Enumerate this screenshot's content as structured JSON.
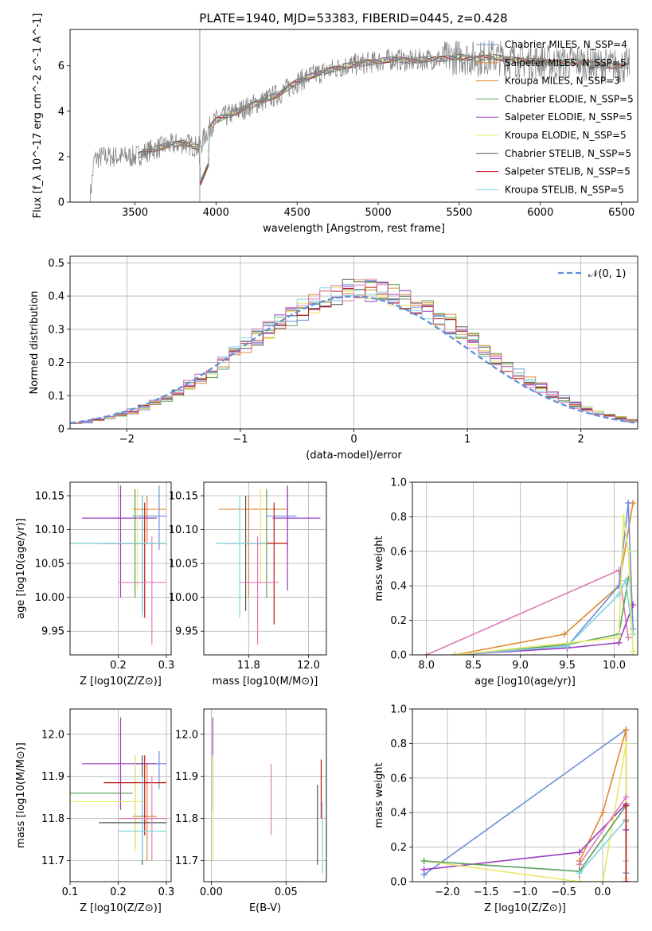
{
  "figure_title": "PLATE=1940, MJD=53383, FIBERID=0445, z=0.428",
  "colors": {
    "chabrier_miles": "#6a8fd8",
    "salpeter_miles": "#e0892f",
    "kroupa_miles": "#e0892f",
    "chabrier_elodie": "#5aa05a",
    "salpeter_elodie": "#9b3fc0",
    "kroupa_elodie": "#e8e86a",
    "chabrier_stelib": "#555555",
    "salpeter_stelib": "#c01818",
    "kroupa_stelib": "#7fd4e0",
    "data": "#808080",
    "gaussian": "#5a8fd8",
    "extra_pink": "#e07ab8"
  },
  "chart_data": [
    {
      "id": "spectrum",
      "type": "line",
      "title": "PLATE=1940, MJD=53383, FIBERID=0445, z=0.428",
      "xlabel": "wavelength [Angstrom, rest frame]",
      "ylabel": "Flux [f_λ 10^-17 erg cm^-2 s^-1 A^-1]",
      "xlim": [
        3100,
        6600
      ],
      "ylim": [
        0,
        7.6
      ],
      "xticks": [
        3500,
        4000,
        4500,
        5000,
        5500,
        6000,
        6500
      ],
      "yticks": [
        0,
        2,
        4,
        6
      ],
      "grid": false,
      "legend_position": "top-right",
      "legend": [
        {
          "label": "Chabrier MILES, N_SSP=4",
          "color": "#6a8fd8"
        },
        {
          "label": "Salpeter MILES, N_SSP=5",
          "color": "#e0892f"
        },
        {
          "label": "Kroupa MILES, N_SSP=3",
          "color": "#e0892f"
        },
        {
          "label": "Chabrier ELODIE, N_SSP=5",
          "color": "#5aa05a"
        },
        {
          "label": "Salpeter ELODIE, N_SSP=5",
          "color": "#9b3fc0"
        },
        {
          "label": "Kroupa ELODIE, N_SSP=5",
          "color": "#e8e86a"
        },
        {
          "label": "Chabrier STELIB, N_SSP=5",
          "color": "#555555"
        },
        {
          "label": "Salpeter STELIB, N_SSP=5",
          "color": "#c01818"
        },
        {
          "label": "Kroupa STELIB, N_SSP=5",
          "color": "#7fd4e0"
        }
      ],
      "continuum_x": [
        3220,
        3250,
        3300,
        3400,
        3500,
        3600,
        3700,
        3800,
        3900,
        3950,
        4000,
        4100,
        4200,
        4300,
        4400,
        4500,
        4600,
        4700,
        4800,
        4900,
        5000,
        5100,
        5200,
        5300,
        5400,
        5500,
        5600,
        5700,
        5800,
        5900,
        6000,
        6100,
        6200,
        6300,
        6400,
        6500
      ],
      "continuum_y": [
        0.0,
        1.9,
        2.0,
        2.0,
        2.0,
        2.3,
        2.5,
        2.6,
        2.4,
        3.2,
        3.6,
        3.9,
        4.2,
        4.5,
        4.8,
        5.3,
        5.6,
        5.8,
        6.0,
        6.1,
        6.2,
        6.3,
        6.2,
        6.3,
        6.3,
        6.4,
        6.3,
        6.4,
        6.3,
        6.2,
        6.2,
        6.1,
        6.2,
        6.1,
        6.0,
        6.0
      ],
      "model_start": 3520,
      "vline_x": 3900
    },
    {
      "id": "residuals",
      "type": "area",
      "xlabel": "(data-model)/error",
      "ylabel": "Normed distribution",
      "xlim": [
        -2.5,
        2.5
      ],
      "ylim": [
        0,
        0.52
      ],
      "xticks": [
        -2,
        -1,
        0,
        1,
        2
      ],
      "yticks": [
        0.0,
        0.1,
        0.2,
        0.3,
        0.4,
        0.5
      ],
      "grid": true,
      "legend_position": "top-right",
      "legend": [
        {
          "label": "𝒩(0, 1)",
          "color": "#5a8fd8"
        }
      ],
      "bin_width": 0.1,
      "series_colors": [
        "#6a8fd8",
        "#e0892f",
        "#5aa05a",
        "#9b3fc0",
        "#e8e86a",
        "#555555",
        "#c01818",
        "#7fd4e0",
        "#e07ab8"
      ]
    },
    {
      "id": "age_vs_Z",
      "type": "scatter",
      "xlabel": "Z [log10(Z/Z⊙)]",
      "ylabel": "age [log10(age/yr)]",
      "xlim": [
        0.1,
        0.31
      ],
      "ylim": [
        9.915,
        10.17
      ],
      "xticks": [
        0.2,
        0.3
      ],
      "yticks": [
        9.95,
        10.0,
        10.05,
        10.1,
        10.15
      ],
      "grid": true,
      "points": [
        {
          "x": 0.285,
          "y": 10.12,
          "xerr": [
            0.23,
            0.3
          ],
          "yerr": [
            10.07,
            10.165
          ],
          "color": "#6a8fd8"
        },
        {
          "x": 0.26,
          "y": 10.13,
          "xerr": [
            0.23,
            0.3
          ],
          "yerr": [
            10.08,
            10.15
          ],
          "color": "#e0892f"
        },
        {
          "x": 0.235,
          "y": 10.08,
          "xerr": [
            0.1,
            0.28
          ],
          "yerr": [
            10.0,
            10.16
          ],
          "color": "#5aa05a"
        },
        {
          "x": 0.205,
          "y": 10.117,
          "xerr": [
            0.125,
            0.28
          ],
          "yerr": [
            10.0,
            10.165
          ],
          "color": "#9b3fc0"
        },
        {
          "x": 0.24,
          "y": 10.08,
          "xerr": [
            0.1,
            0.3
          ],
          "yerr": [
            10.01,
            10.16
          ],
          "color": "#e8e86a"
        },
        {
          "x": 0.25,
          "y": 10.08,
          "xerr": [
            0.16,
            0.3
          ],
          "yerr": [
            9.98,
            10.15
          ],
          "color": "#555555"
        },
        {
          "x": 0.255,
          "y": 10.08,
          "xerr": [
            0.17,
            0.3
          ],
          "yerr": [
            9.97,
            10.14
          ],
          "color": "#c01818"
        },
        {
          "x": 0.27,
          "y": 10.022,
          "xerr": [
            0.2,
            0.3
          ],
          "yerr": [
            9.93,
            10.09
          ],
          "color": "#e07ab8"
        },
        {
          "x": 0.25,
          "y": 10.08,
          "xerr": [
            0.1,
            0.3
          ],
          "yerr": [
            9.97,
            10.15
          ],
          "color": "#7fd4e0"
        }
      ]
    },
    {
      "id": "age_vs_mass",
      "type": "scatter",
      "xlabel": "mass [log10(M/M⊙)]",
      "ylabel": "",
      "xlim": [
        11.65,
        12.06
      ],
      "ylim": [
        9.915,
        10.17
      ],
      "xticks": [
        11.8,
        12.0
      ],
      "yticks": [
        9.95,
        10.0,
        10.05,
        10.1,
        10.15
      ],
      "grid": true,
      "points": [
        {
          "x": 11.93,
          "y": 10.12,
          "xerr": [
            11.86,
            11.96
          ],
          "yerr": [
            10.07,
            10.165
          ],
          "color": "#6a8fd8"
        },
        {
          "x": 11.8,
          "y": 10.13,
          "xerr": [
            11.7,
            11.93
          ],
          "yerr": [
            10.0,
            10.15
          ],
          "color": "#e0892f"
        },
        {
          "x": 11.86,
          "y": 10.08,
          "xerr": [
            11.78,
            11.93
          ],
          "yerr": [
            10.0,
            10.16
          ],
          "color": "#5aa05a"
        },
        {
          "x": 11.93,
          "y": 10.117,
          "xerr": [
            11.88,
            12.04
          ],
          "yerr": [
            10.01,
            10.165
          ],
          "color": "#9b3fc0"
        },
        {
          "x": 11.84,
          "y": 10.08,
          "xerr": [
            11.76,
            11.93
          ],
          "yerr": [
            10.02,
            10.16
          ],
          "color": "#e8e86a"
        },
        {
          "x": 11.79,
          "y": 10.08,
          "xerr": [
            11.72,
            11.86
          ],
          "yerr": [
            9.98,
            10.15
          ],
          "color": "#555555"
        },
        {
          "x": 11.885,
          "y": 10.08,
          "xerr": [
            11.82,
            11.93
          ],
          "yerr": [
            9.96,
            10.14
          ],
          "color": "#c01818"
        },
        {
          "x": 11.83,
          "y": 10.022,
          "xerr": [
            11.77,
            11.9
          ],
          "yerr": [
            9.93,
            10.09
          ],
          "color": "#e07ab8"
        },
        {
          "x": 11.77,
          "y": 10.08,
          "xerr": [
            11.69,
            11.86
          ],
          "yerr": [
            9.97,
            10.15
          ],
          "color": "#7fd4e0"
        }
      ]
    },
    {
      "id": "weight_vs_age",
      "type": "line",
      "xlabel": "age [log10(age/yr)]",
      "ylabel": "mass weight",
      "xlim": [
        7.85,
        10.25
      ],
      "ylim": [
        0,
        1.0
      ],
      "xticks": [
        8.0,
        8.5,
        9.0,
        9.5,
        10.0
      ],
      "yticks": [
        0.0,
        0.2,
        0.4,
        0.6,
        0.8,
        1.0
      ],
      "grid": true,
      "series": [
        {
          "color": "#e07ab8",
          "x": [
            8.0,
            10.05,
            10.15
          ],
          "y": [
            0.0,
            0.49,
            0.1
          ]
        },
        {
          "color": "#e0892f",
          "x": [
            8.3,
            9.47,
            10.05,
            10.2
          ],
          "y": [
            0.0,
            0.12,
            0.4,
            0.88
          ]
        },
        {
          "color": "#6a8fd8",
          "x": [
            8.3,
            9.5,
            10.05,
            10.15,
            10.2
          ],
          "y": [
            0.0,
            0.05,
            0.4,
            0.88,
            0.15
          ]
        },
        {
          "color": "#9b3fc0",
          "x": [
            8.3,
            9.5,
            10.05,
            10.2
          ],
          "y": [
            0.0,
            0.04,
            0.07,
            0.29
          ]
        },
        {
          "color": "#5aa05a",
          "x": [
            8.3,
            9.5,
            10.05,
            10.15
          ],
          "y": [
            0.0,
            0.06,
            0.12,
            0.44
          ]
        },
        {
          "color": "#7fd4e0",
          "x": [
            8.3,
            9.5,
            10.05,
            10.12,
            10.2
          ],
          "y": [
            0.0,
            0.05,
            0.35,
            0.43,
            0.12
          ]
        },
        {
          "color": "#e8e86a",
          "x": [
            8.3,
            10.05,
            10.1,
            10.15,
            10.2
          ],
          "y": [
            0.0,
            0.1,
            0.8,
            0.6,
            0.02
          ]
        }
      ]
    },
    {
      "id": "mass_vs_Z",
      "type": "scatter",
      "xlabel": "Z [log10(Z/Z⊙)]",
      "ylabel": "mass [log10(M/M⊙)]",
      "xlim": [
        0.1,
        0.31
      ],
      "ylim": [
        11.65,
        12.06
      ],
      "xticks": [
        0.1,
        0.2,
        0.3
      ],
      "yticks": [
        11.7,
        11.8,
        11.9,
        12.0
      ],
      "grid": true,
      "points": [
        {
          "x": 0.285,
          "y": 11.93,
          "xerr": [
            0.23,
            0.3
          ],
          "yerr": [
            11.87,
            11.96
          ],
          "color": "#6a8fd8"
        },
        {
          "x": 0.26,
          "y": 11.805,
          "xerr": [
            0.23,
            0.28
          ],
          "yerr": [
            11.7,
            11.93
          ],
          "color": "#e0892f"
        },
        {
          "x": 0.235,
          "y": 11.86,
          "xerr": [
            0.1,
            0.23
          ],
          "yerr": [
            11.73,
            11.95
          ],
          "color": "#5aa05a"
        },
        {
          "x": 0.205,
          "y": 11.93,
          "xerr": [
            0.125,
            0.28
          ],
          "yerr": [
            11.82,
            12.04
          ],
          "color": "#9b3fc0"
        },
        {
          "x": 0.235,
          "y": 11.84,
          "xerr": [
            0.1,
            0.25
          ],
          "yerr": [
            11.72,
            11.95
          ],
          "color": "#e8e86a"
        },
        {
          "x": 0.25,
          "y": 11.79,
          "xerr": [
            0.16,
            0.3
          ],
          "yerr": [
            11.69,
            11.95
          ],
          "color": "#555555"
        },
        {
          "x": 0.255,
          "y": 11.885,
          "xerr": [
            0.17,
            0.3
          ],
          "yerr": [
            11.76,
            11.95
          ],
          "color": "#c01818"
        },
        {
          "x": 0.27,
          "y": 11.8,
          "xerr": [
            0.2,
            0.3
          ],
          "yerr": [
            11.7,
            11.9
          ],
          "color": "#e07ab8"
        },
        {
          "x": 0.25,
          "y": 11.77,
          "xerr": [
            0.2,
            0.3
          ],
          "yerr": [
            11.7,
            11.9
          ],
          "color": "#7fd4e0"
        }
      ]
    },
    {
      "id": "mass_vs_ebv",
      "type": "scatter",
      "xlabel": "E(B-V)",
      "ylabel": "",
      "xlim": [
        -0.005,
        0.077
      ],
      "ylim": [
        11.65,
        12.06
      ],
      "xticks": [
        0.0,
        0.05
      ],
      "yticks": [
        11.7,
        11.8,
        11.9,
        12.0
      ],
      "grid": true,
      "points": [
        {
          "x": 0.001,
          "y": 11.93,
          "yerr": [
            11.82,
            12.04
          ],
          "color": "#9b3fc0"
        },
        {
          "x": 0.001,
          "y": 11.84,
          "yerr": [
            11.7,
            11.95
          ],
          "color": "#e8e86a"
        },
        {
          "x": 0.04,
          "y": 11.85,
          "yerr": [
            11.76,
            11.93
          ],
          "color": "#e07ab8"
        },
        {
          "x": 0.071,
          "y": 11.79,
          "yerr": [
            11.69,
            11.88
          ],
          "color": "#555555"
        },
        {
          "x": 0.0735,
          "y": 11.88,
          "yerr": [
            11.8,
            11.94
          ],
          "color": "#c01818"
        },
        {
          "x": 0.0745,
          "y": 11.77,
          "yerr": [
            11.67,
            11.84
          ],
          "color": "#7fd4e0"
        }
      ]
    },
    {
      "id": "weight_vs_Z",
      "type": "line",
      "xlabel": "Z [log10(Z/Z⊙)]",
      "ylabel": "mass weight",
      "xlim": [
        -2.45,
        0.45
      ],
      "ylim": [
        0,
        1.0
      ],
      "xticks": [
        -2.0,
        -1.5,
        -1.0,
        -0.5,
        0.0
      ],
      "yticks": [
        0.0,
        0.2,
        0.4,
        0.6,
        0.8,
        1.0
      ],
      "grid": true,
      "series": [
        {
          "color": "#6a8fd8",
          "x": [
            -2.3,
            0.3,
            0.3
          ],
          "y": [
            0.04,
            0.88,
            0.05
          ]
        },
        {
          "color": "#e0892f",
          "x": [
            -0.3,
            -0.3,
            0.0,
            0.3,
            0.3
          ],
          "y": [
            0.0,
            0.12,
            0.4,
            0.88,
            0.35
          ]
        },
        {
          "color": "#9b3fc0",
          "x": [
            -2.3,
            -0.3,
            0.3,
            0.3
          ],
          "y": [
            0.07,
            0.17,
            0.45,
            0.3
          ]
        },
        {
          "color": "#e8e86a",
          "x": [
            -2.3,
            -0.3,
            0.0,
            0.3,
            0.3
          ],
          "y": [
            0.12,
            0.0,
            0.0,
            0.8,
            0.02
          ]
        },
        {
          "color": "#5aa05a",
          "x": [
            -2.3,
            -0.3,
            0.3
          ],
          "y": [
            0.12,
            0.06,
            0.44
          ]
        },
        {
          "color": "#7fd4e0",
          "x": [
            -0.3,
            0.3,
            0.3
          ],
          "y": [
            0.05,
            0.36,
            0.12
          ]
        },
        {
          "color": "#e07ab8",
          "x": [
            -0.3,
            0.3
          ],
          "y": [
            0.1,
            0.49
          ]
        },
        {
          "color": "#c01818",
          "x": [
            0.3,
            0.3
          ],
          "y": [
            0.0,
            0.44
          ]
        }
      ]
    }
  ]
}
